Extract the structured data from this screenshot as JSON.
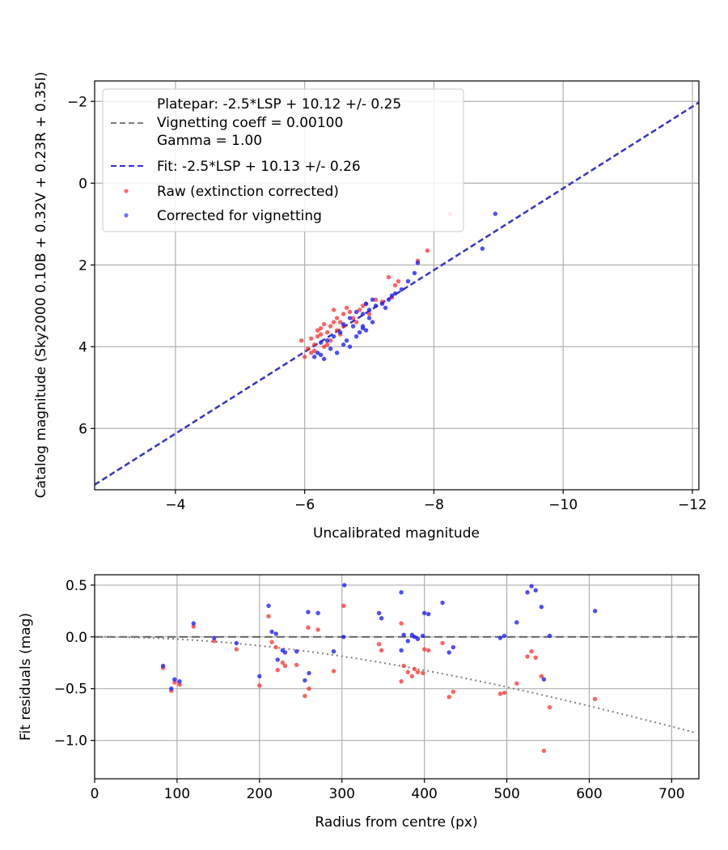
{
  "chart_data": [
    {
      "type": "scatter",
      "xlabel": "Uncalibrated magnitude",
      "ylabel": "Catalog magnitude (Sky2000 0.10B + 0.32V + 0.23R + 0.35I)",
      "xlim": [
        -2.75,
        -12.1
      ],
      "ylim": [
        7.5,
        -2.5
      ],
      "x_inverted": true,
      "y_inverted": true,
      "xticks": [
        -4,
        -6,
        -8,
        -10,
        -12
      ],
      "xtick_labels": [
        "−4",
        "−6",
        "−8",
        "−10",
        "−12"
      ],
      "yticks": [
        -2,
        0,
        2,
        4,
        6
      ],
      "ytick_labels": [
        "−2",
        "0",
        "2",
        "4",
        "6"
      ],
      "grid": true,
      "legend_position": "top-left",
      "lines": [
        {
          "name": "Platepar: -2.5*LSP + 10.12 +/- 0.25",
          "name_lines": [
            "Platepar: -2.5*LSP + 10.12 +/- 0.25",
            "Vignetting coeff = 0.00100",
            "Gamma = 1.00"
          ],
          "color": "#808080",
          "style": "dashed",
          "slope": 1,
          "intercept": 10.12
        },
        {
          "name": "Fit: -2.5*LSP + 10.13 +/- 0.26",
          "name_lines": [
            "Fit: -2.5*LSP + 10.13 +/- 0.26"
          ],
          "color": "#3030d8",
          "style": "dashed",
          "slope": 1,
          "intercept": 10.13
        }
      ],
      "series": [
        {
          "name": "Raw (extinction corrected)",
          "color": "#ff2020",
          "points": [
            [
              -6.0,
              4.25
            ],
            [
              -6.05,
              4.05
            ],
            [
              -6.1,
              3.8
            ],
            [
              -6.15,
              3.95
            ],
            [
              -6.2,
              3.6
            ],
            [
              -6.25,
              3.7
            ],
            [
              -6.3,
              4.0
            ],
            [
              -6.2,
              3.75
            ],
            [
              -6.1,
              4.15
            ],
            [
              -6.35,
              3.65
            ],
            [
              -6.4,
              3.5
            ],
            [
              -6.45,
              3.4
            ],
            [
              -6.3,
              3.45
            ],
            [
              -6.5,
              3.6
            ],
            [
              -6.55,
              3.7
            ],
            [
              -6.6,
              3.5
            ],
            [
              -6.5,
              3.3
            ],
            [
              -6.45,
              3.1
            ],
            [
              -6.6,
              3.2
            ],
            [
              -6.7,
              3.15
            ],
            [
              -6.75,
              3.3
            ],
            [
              -6.65,
              3.05
            ],
            [
              -6.8,
              3.4
            ],
            [
              -6.85,
              3.1
            ],
            [
              -6.9,
              3.0
            ],
            [
              -6.95,
              2.95
            ],
            [
              -7.0,
              3.2
            ],
            [
              -7.1,
              2.85
            ],
            [
              -7.2,
              2.9
            ],
            [
              -7.3,
              2.3
            ],
            [
              -7.35,
              2.8
            ],
            [
              -7.4,
              2.5
            ],
            [
              -7.45,
              2.4
            ],
            [
              -7.75,
              1.9
            ],
            [
              -7.9,
              1.65
            ],
            [
              -8.25,
              0.75
            ],
            [
              -6.35,
              3.95
            ],
            [
              -6.4,
              3.85
            ],
            [
              -6.15,
              4.1
            ],
            [
              -5.95,
              3.85
            ],
            [
              -6.25,
              3.55
            ],
            [
              -6.55,
              3.4
            ]
          ]
        },
        {
          "name": "Corrected for vignetting",
          "color": "#2020ff",
          "points": [
            [
              -6.15,
              4.25
            ],
            [
              -6.25,
              4.2
            ],
            [
              -6.3,
              4.3
            ],
            [
              -6.4,
              4.05
            ],
            [
              -6.5,
              4.15
            ],
            [
              -6.6,
              3.95
            ],
            [
              -6.7,
              4.0
            ],
            [
              -6.8,
              3.75
            ],
            [
              -6.85,
              3.65
            ],
            [
              -6.9,
              3.5
            ],
            [
              -6.95,
              3.6
            ],
            [
              -7.0,
              3.3
            ],
            [
              -6.9,
              3.2
            ],
            [
              -7.0,
              3.1
            ],
            [
              -7.1,
              3.0
            ],
            [
              -7.2,
              2.95
            ],
            [
              -7.3,
              2.85
            ],
            [
              -7.4,
              2.7
            ],
            [
              -7.5,
              2.6
            ],
            [
              -7.6,
              2.4
            ],
            [
              -7.7,
              2.2
            ],
            [
              -7.75,
              1.95
            ],
            [
              -6.6,
              3.45
            ],
            [
              -6.7,
              3.3
            ],
            [
              -6.8,
              3.15
            ],
            [
              -6.55,
              3.65
            ],
            [
              -6.45,
              3.75
            ],
            [
              -6.35,
              3.85
            ],
            [
              -6.25,
              3.9
            ],
            [
              -6.2,
              4.15
            ],
            [
              -6.95,
              2.95
            ],
            [
              -7.05,
              2.85
            ],
            [
              -7.35,
              2.75
            ],
            [
              -7.25,
              3.05
            ],
            [
              -8.75,
              1.6
            ],
            [
              -8.95,
              0.75
            ],
            [
              -6.65,
              3.85
            ],
            [
              -6.75,
              3.5
            ],
            [
              -7.05,
              3.4
            ],
            [
              -6.9,
              3.55
            ]
          ]
        }
      ]
    },
    {
      "type": "scatter",
      "xlabel": "Radius from centre (px)",
      "ylabel": "Fit residuals (mag)",
      "xlim": [
        0,
        733
      ],
      "ylim": [
        -1.37,
        0.6
      ],
      "xticks": [
        0,
        100,
        200,
        300,
        400,
        500,
        600,
        700
      ],
      "xtick_labels": [
        "0",
        "100",
        "200",
        "300",
        "400",
        "500",
        "600",
        "700"
      ],
      "yticks": [
        0.5,
        0.0,
        -0.5,
        -1.0
      ],
      "ytick_labels": [
        "0.5",
        "0.0",
        "−0.5",
        "−1.0"
      ],
      "grid": true,
      "reference_line": {
        "y": 0,
        "color": "#606060",
        "style": "dashed"
      },
      "vignetting_curve": {
        "color": "#808080",
        "style": "dotted",
        "coeff": 0.001,
        "gamma": 1.0
      },
      "series": [
        {
          "name": "Raw (extinction corrected)",
          "color": "#ff2020",
          "points": [
            [
              83,
              -0.3
            ],
            [
              93,
              -0.52
            ],
            [
              97,
              -0.44
            ],
            [
              103,
              -0.46
            ],
            [
              120,
              0.1
            ],
            [
              145,
              -0.04
            ],
            [
              172,
              -0.12
            ],
            [
              200,
              -0.47
            ],
            [
              211,
              0.2
            ],
            [
              215,
              -0.05
            ],
            [
              220,
              -0.1
            ],
            [
              222,
              -0.32
            ],
            [
              228,
              -0.25
            ],
            [
              231,
              -0.28
            ],
            [
              245,
              -0.27
            ],
            [
              255,
              -0.57
            ],
            [
              259,
              0.09
            ],
            [
              260,
              -0.5
            ],
            [
              271,
              0.07
            ],
            [
              290,
              -0.33
            ],
            [
              302,
              0.3
            ],
            [
              345,
              -0.07
            ],
            [
              348,
              -0.13
            ],
            [
              372,
              0.13
            ],
            [
              372,
              -0.43
            ],
            [
              375,
              -0.28
            ],
            [
              380,
              -0.34
            ],
            [
              385,
              -0.38
            ],
            [
              388,
              -0.31
            ],
            [
              392,
              -0.34
            ],
            [
              398,
              -0.35
            ],
            [
              400,
              -0.12
            ],
            [
              405,
              -0.13
            ],
            [
              422,
              -0.06
            ],
            [
              430,
              -0.58
            ],
            [
              435,
              -0.53
            ],
            [
              492,
              -0.55
            ],
            [
              497,
              -0.54
            ],
            [
              512,
              -0.45
            ],
            [
              525,
              -0.19
            ],
            [
              530,
              -0.14
            ],
            [
              535,
              -0.2
            ],
            [
              542,
              -0.38
            ],
            [
              545,
              -1.1
            ],
            [
              552,
              -0.68
            ],
            [
              607,
              -0.6
            ]
          ]
        },
        {
          "name": "Corrected for vignetting",
          "color": "#2020ff",
          "points": [
            [
              83,
              -0.28
            ],
            [
              93,
              -0.5
            ],
            [
              97,
              -0.41
            ],
            [
              103,
              -0.43
            ],
            [
              120,
              0.13
            ],
            [
              145,
              -0.01
            ],
            [
              172,
              -0.06
            ],
            [
              200,
              -0.38
            ],
            [
              211,
              0.3
            ],
            [
              215,
              0.05
            ],
            [
              220,
              0.03
            ],
            [
              222,
              -0.22
            ],
            [
              228,
              -0.13
            ],
            [
              231,
              -0.15
            ],
            [
              245,
              -0.14
            ],
            [
              255,
              -0.42
            ],
            [
              259,
              0.24
            ],
            [
              260,
              -0.35
            ],
            [
              271,
              0.23
            ],
            [
              290,
              -0.14
            ],
            [
              302,
              0.0
            ],
            [
              303,
              0.5
            ],
            [
              345,
              0.23
            ],
            [
              348,
              0.18
            ],
            [
              372,
              0.43
            ],
            [
              372,
              -0.13
            ],
            [
              375,
              0.02
            ],
            [
              380,
              -0.04
            ],
            [
              385,
              0.02
            ],
            [
              388,
              0.0
            ],
            [
              392,
              -0.02
            ],
            [
              398,
              0.01
            ],
            [
              400,
              0.23
            ],
            [
              405,
              0.22
            ],
            [
              422,
              0.33
            ],
            [
              430,
              -0.15
            ],
            [
              435,
              -0.1
            ],
            [
              492,
              -0.01
            ],
            [
              497,
              0.01
            ],
            [
              512,
              0.14
            ],
            [
              525,
              0.43
            ],
            [
              530,
              0.49
            ],
            [
              535,
              0.45
            ],
            [
              542,
              0.29
            ],
            [
              545,
              -0.41
            ],
            [
              552,
              0.01
            ],
            [
              607,
              0.25
            ]
          ]
        }
      ]
    }
  ]
}
